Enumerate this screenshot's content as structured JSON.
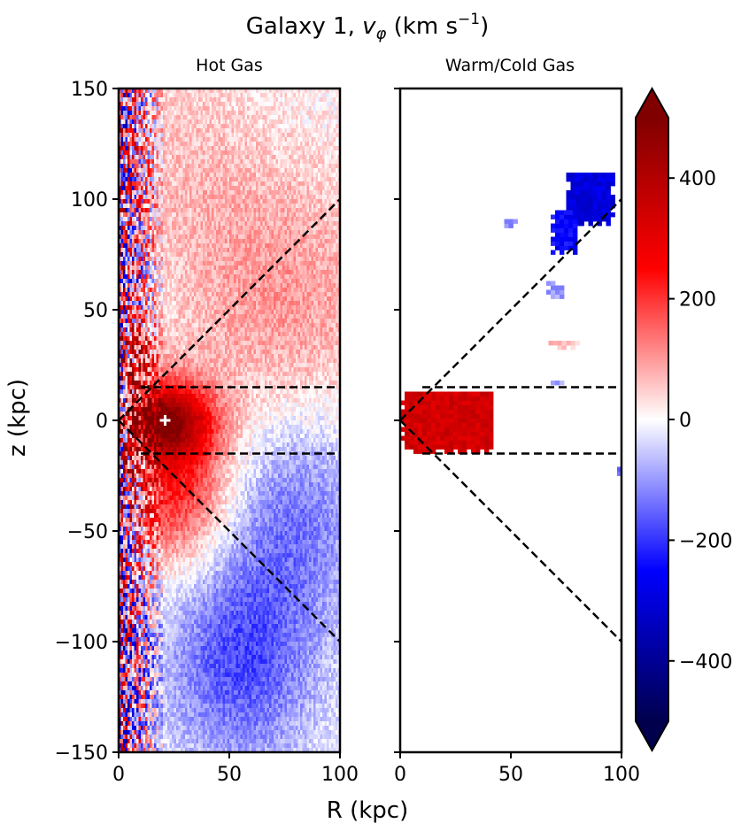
{
  "chart_data": {
    "type": "heatmap",
    "title": {
      "prefix": "Galaxy 1, ",
      "symbol": "v",
      "subscript": "φ",
      "unit_prefix": " (km s",
      "unit_exp": "−1",
      "unit_suffix": ")"
    },
    "xlabel": "R (kpc)",
    "ylabel": "z (kpc)",
    "xlim": [
      0,
      100
    ],
    "ylim": [
      -150,
      150
    ],
    "xticks": [
      0,
      50,
      100
    ],
    "yticks": [
      -150,
      -100,
      -50,
      0,
      50,
      100,
      150
    ],
    "ytick_labels": [
      "−150",
      "−100",
      "−50",
      "0",
      "50",
      "100",
      "150"
    ],
    "panels": [
      {
        "title": "Hot Gas",
        "description": "mostly positive rotation in upper half and central bulge (R<40, |z|<20, ~400 km/s), negative rotation (~-150 km/s) at R 40-100, z -30 to -150; noisy pixels at small R",
        "features": [
          {
            "kind": "blob",
            "R": 20,
            "z": 0,
            "sR": 15,
            "sz": 12,
            "v": 400
          },
          {
            "kind": "blob",
            "R": 8,
            "z": 30,
            "sR": 6,
            "sz": 10,
            "v": 220
          },
          {
            "kind": "blob",
            "R": 25,
            "z": -30,
            "sR": 18,
            "sz": 25,
            "v": 230
          },
          {
            "kind": "blob",
            "R": 75,
            "z": 50,
            "sR": 35,
            "sz": 45,
            "v": 100
          },
          {
            "kind": "blob",
            "R": 55,
            "z": -110,
            "sR": 25,
            "sz": 35,
            "v": -170
          },
          {
            "kind": "blob",
            "R": 80,
            "z": -40,
            "sR": 25,
            "sz": 35,
            "v": -130
          },
          {
            "kind": "blob",
            "R": 30,
            "z": 120,
            "sR": 30,
            "sz": 40,
            "v": 50
          }
        ],
        "center_marker": {
          "R": 21,
          "z": 0,
          "symbol": "+"
        }
      },
      {
        "title": "Warm/Cold Gas",
        "description": "disk of strong positive rotation (~350 km/s) at R 0-40, z -15 to 12; negative clumps near R 70-95, z 60-110",
        "regions": [
          {
            "v": 340,
            "R": [
              0,
              42
            ],
            "z": [
              -15,
              13
            ]
          },
          {
            "v": -300,
            "R": [
              75,
              96
            ],
            "z": [
              88,
              112
            ]
          },
          {
            "v": -250,
            "R": [
              68,
              80
            ],
            "z": [
              75,
              95
            ]
          },
          {
            "v": -130,
            "R": [
              47,
              53
            ],
            "z": [
              87,
              90
            ]
          },
          {
            "v": -100,
            "R": [
              66,
              74
            ],
            "z": [
              55,
              62
            ]
          },
          {
            "v": 60,
            "R": [
              67,
              81
            ],
            "z": [
              32,
              35
            ]
          },
          {
            "v": -90,
            "R": [
              68,
              73
            ],
            "z": [
              16,
              18
            ]
          },
          {
            "v": -140,
            "R": [
              98,
              100
            ],
            "z": [
              -25,
              -22
            ]
          }
        ]
      }
    ],
    "overlay_lines": [
      {
        "style": "dashed",
        "from": [
          0,
          0
        ],
        "to": [
          100,
          100
        ]
      },
      {
        "style": "dashed",
        "from": [
          0,
          0
        ],
        "to": [
          100,
          -100
        ]
      },
      {
        "style": "dashed",
        "from": [
          10,
          15
        ],
        "to": [
          100,
          15
        ]
      },
      {
        "style": "dashed",
        "from": [
          10,
          -15
        ],
        "to": [
          100,
          -15
        ]
      }
    ],
    "colorbar": {
      "cmap": "seismic",
      "vmin": -500,
      "vmax": 500,
      "extend": "both",
      "ticks": [
        -400,
        -200,
        0,
        200,
        400
      ],
      "tick_labels": [
        "−400",
        "−200",
        "0",
        "200",
        "400"
      ]
    }
  }
}
